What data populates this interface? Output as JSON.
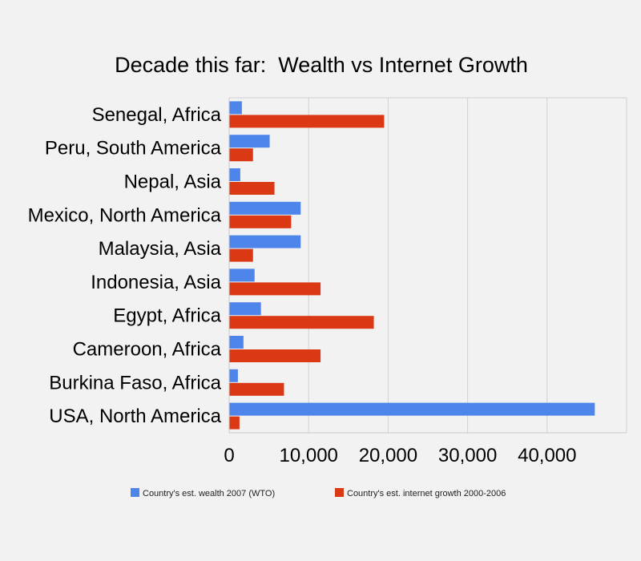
{
  "chart_data": {
    "type": "bar",
    "orientation": "horizontal",
    "title": "Decade this far:  Wealth vs Internet Growth",
    "categories": [
      "Senegal, Africa",
      "Peru, South America",
      "Nepal, Asia",
      "Mexico, North America",
      "Malaysia, Asia",
      "Indonesia, Asia",
      "Egypt, Africa",
      "Cameroon, Africa",
      "Burkina Faso, Africa",
      "USA, North America"
    ],
    "series": [
      {
        "name": "Country's est. wealth 2007 (WTO)",
        "color": "#4d85eb",
        "values": [
          1600,
          5100,
          1400,
          9000,
          9000,
          3200,
          4000,
          1800,
          1100,
          46000
        ]
      },
      {
        "name": "Country's est. internet growth 2000-2006",
        "color": "#db3814",
        "values": [
          19500,
          3000,
          5700,
          7800,
          3000,
          11500,
          18200,
          11500,
          6900,
          1300
        ]
      }
    ],
    "xlim": [
      0,
      50000
    ],
    "xticks": [
      0,
      10000,
      20000,
      30000,
      40000
    ],
    "xtick_labels": [
      "0",
      "10,000",
      "20,000",
      "30,000",
      "40,000"
    ],
    "grid": true,
    "legend_position": "bottom"
  }
}
